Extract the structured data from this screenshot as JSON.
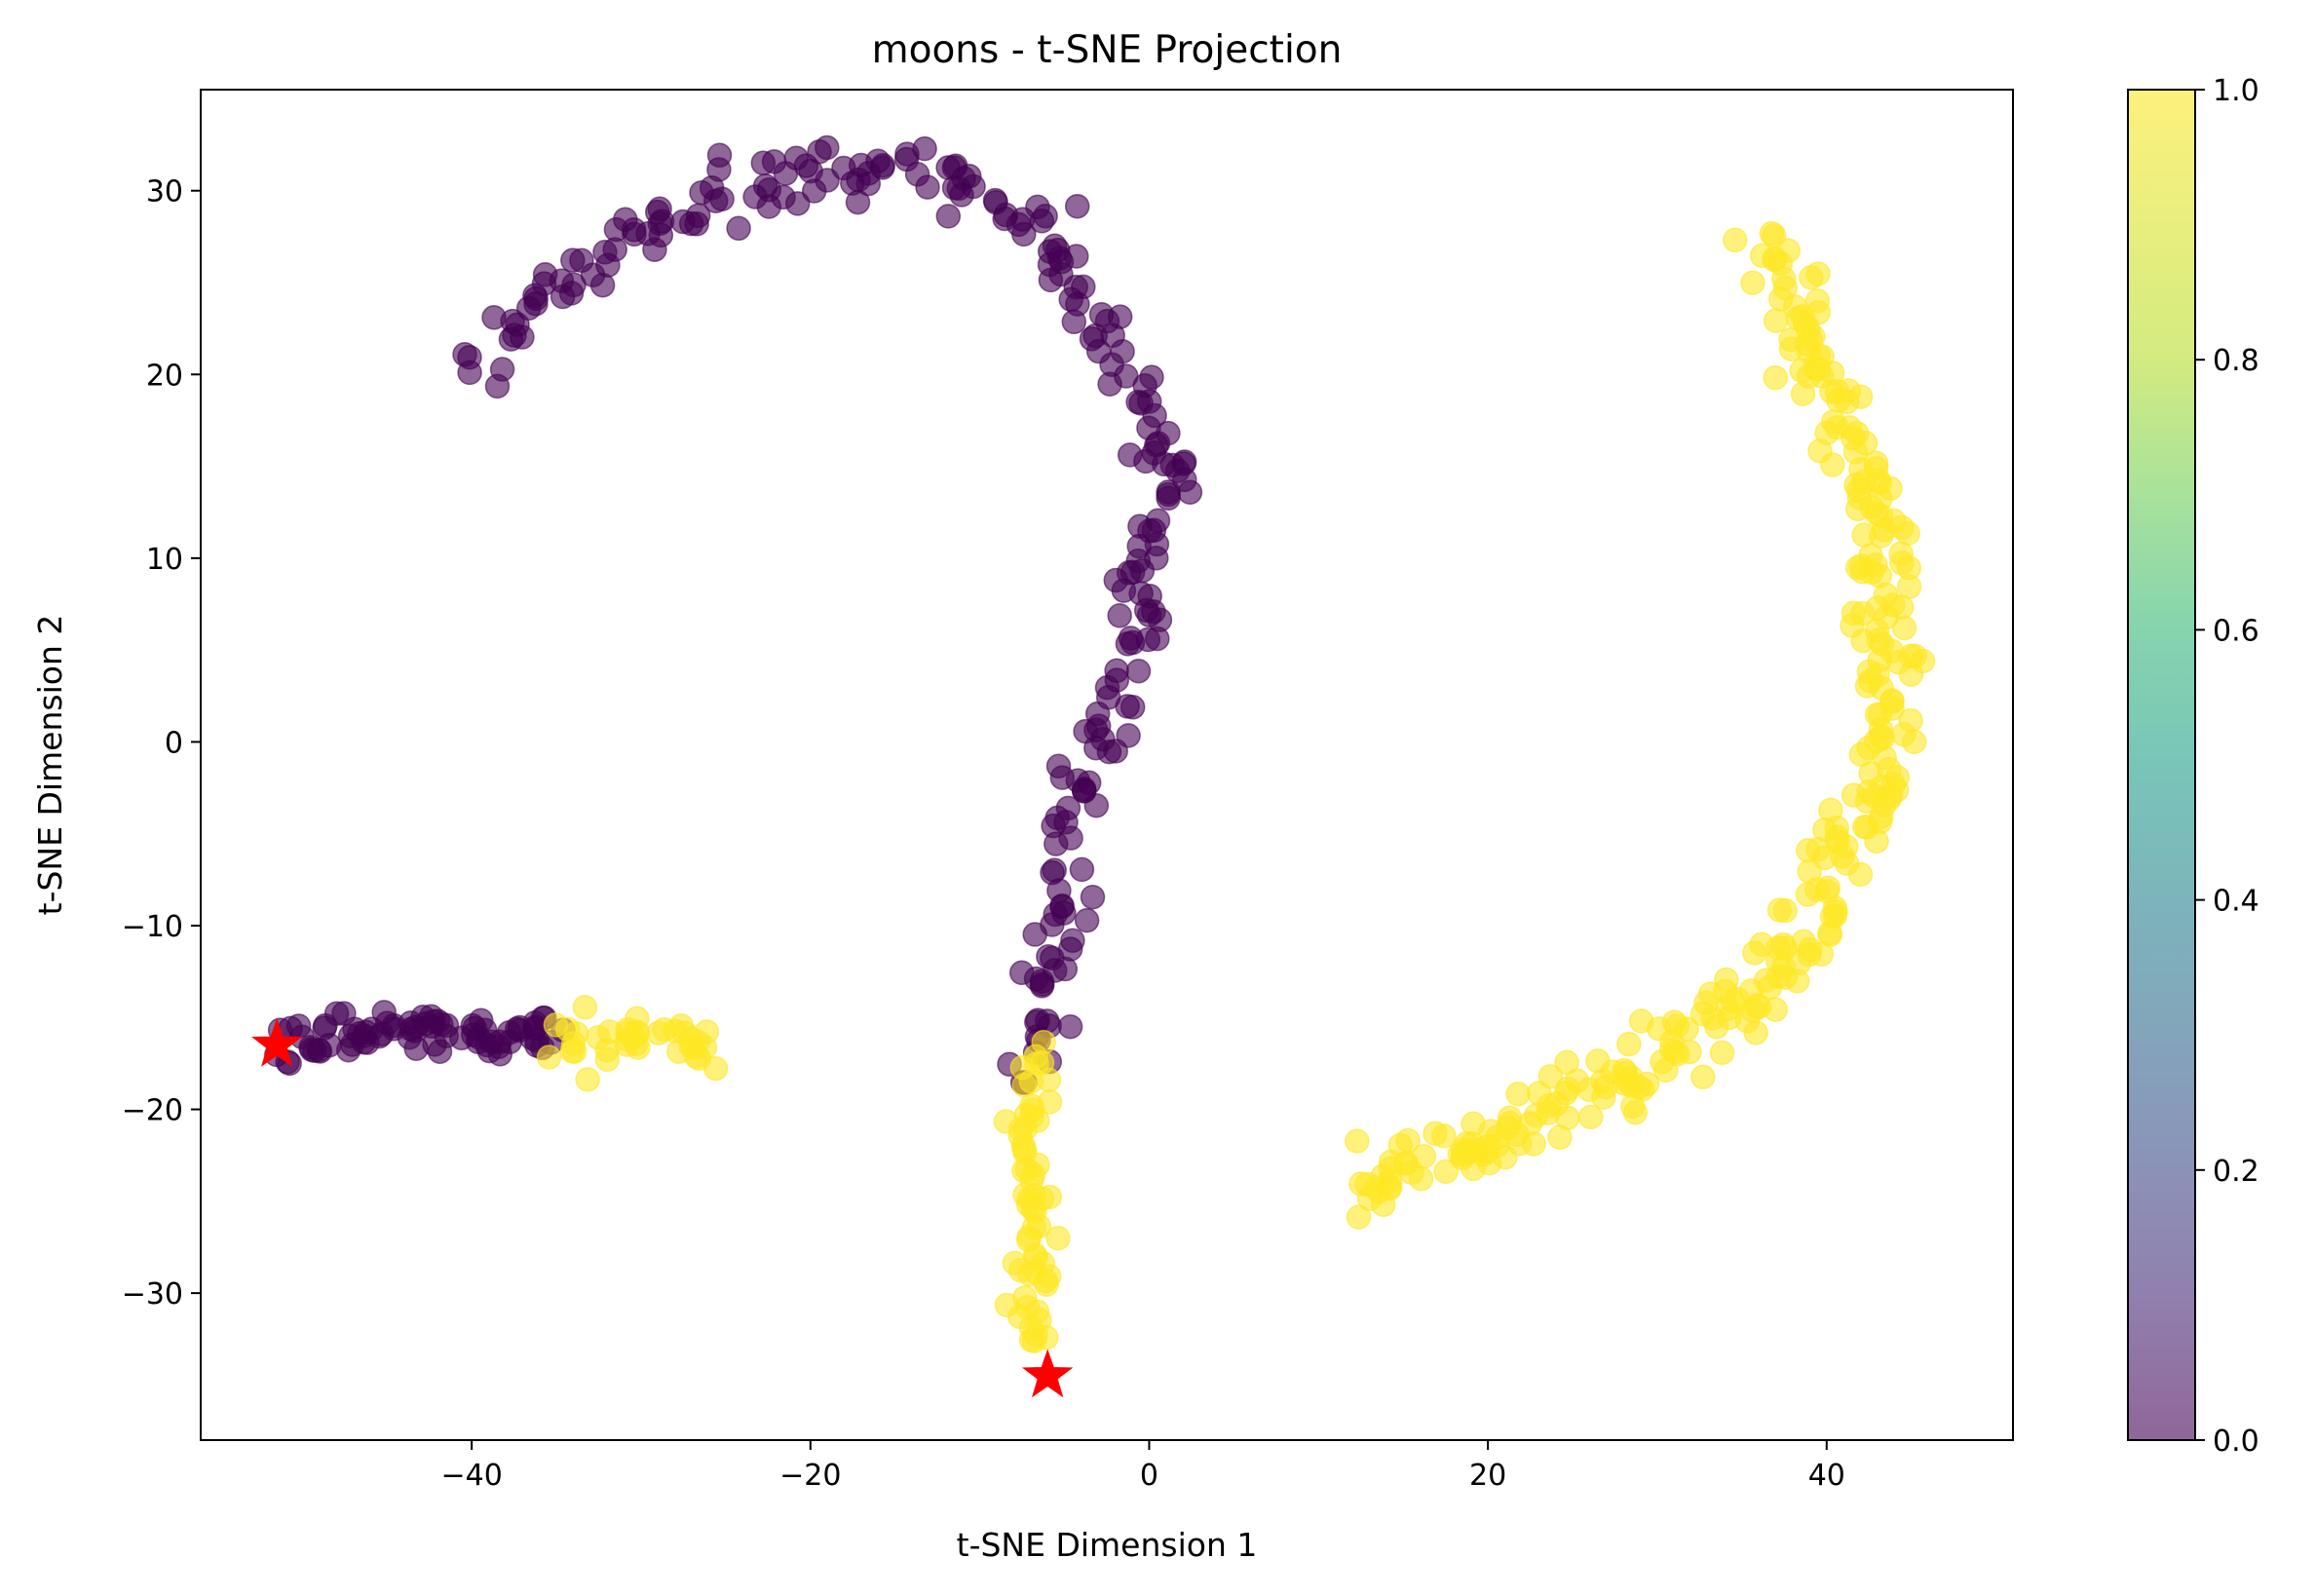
{
  "chart_data": {
    "type": "scatter",
    "title": "moons - t-SNE Projection",
    "xlabel": "t-SNE Dimension 1",
    "ylabel": "t-SNE Dimension 2",
    "xlim": [
      -56,
      51
    ],
    "ylim": [
      -38,
      35.5
    ],
    "xticks": [
      -40,
      -20,
      0,
      20,
      40
    ],
    "yticks": [
      -30,
      -20,
      -10,
      0,
      10,
      20,
      30
    ],
    "xtick_labels": [
      "−40",
      "−20",
      "0",
      "20",
      "40"
    ],
    "ytick_labels": [
      "−30",
      "−20",
      "−10",
      "0",
      "10",
      "20",
      "30"
    ],
    "grid": false,
    "colormap": "viridis",
    "class_colors": {
      "0": "#440154",
      "1": "#fde725"
    },
    "marker_color": "#ff0000",
    "point_alpha": 0.6,
    "colorbar": {
      "range": [
        0.0,
        1.0
      ],
      "ticks": [
        0.0,
        0.2,
        0.4,
        0.6,
        0.8,
        1.0
      ],
      "tick_labels": [
        "0.0",
        "0.2",
        "0.4",
        "0.6",
        "0.8",
        "1.0"
      ]
    },
    "curves": [
      {
        "class": 0,
        "n": 240,
        "spread": 0.8,
        "path": [
          [
            -40,
            20.5
          ],
          [
            -38,
            22
          ],
          [
            -35,
            24
          ],
          [
            -33,
            25.5
          ],
          [
            -31,
            27
          ],
          [
            -28,
            28.5
          ],
          [
            -26,
            29.8
          ],
          [
            -23,
            30.3
          ],
          [
            -20,
            31
          ],
          [
            -17,
            31.2
          ],
          [
            -14,
            30.8
          ],
          [
            -11,
            30
          ],
          [
            -9,
            29.5
          ],
          [
            -7,
            28.5
          ],
          [
            -5.5,
            27.5
          ],
          [
            -5,
            26
          ],
          [
            -4,
            24.5
          ],
          [
            -3,
            23
          ],
          [
            -2,
            21.5
          ],
          [
            -1.5,
            20
          ],
          [
            -1,
            18
          ],
          [
            0,
            16
          ],
          [
            1.5,
            15
          ],
          [
            1,
            13
          ],
          [
            0,
            11
          ],
          [
            -0.5,
            9
          ],
          [
            -1,
            7
          ],
          [
            0,
            6
          ],
          [
            -1,
            4
          ],
          [
            -2,
            2.5
          ],
          [
            -3,
            1
          ],
          [
            -3.5,
            -1
          ],
          [
            -4,
            -3
          ],
          [
            -4.5,
            -5
          ],
          [
            -5,
            -7
          ],
          [
            -5,
            -9
          ],
          [
            -5.5,
            -11
          ],
          [
            -6,
            -13
          ],
          [
            -6.5,
            -15
          ],
          [
            -7,
            -17
          ],
          [
            -8,
            -18.5
          ]
        ]
      },
      {
        "class": 1,
        "n": 60,
        "spread": 0.6,
        "path": [
          [
            -6,
            -17
          ],
          [
            -7,
            -19.5
          ],
          [
            -7,
            -22
          ],
          [
            -6.5,
            -24.5
          ],
          [
            -7,
            -27
          ],
          [
            -6.5,
            -29
          ],
          [
            -7.5,
            -31
          ],
          [
            -6.5,
            -32.5
          ]
        ]
      },
      {
        "class": 0,
        "n": 80,
        "spread": 0.6,
        "path": [
          [
            -51,
            -16.5
          ],
          [
            -48,
            -16
          ],
          [
            -45,
            -15.8
          ],
          [
            -42,
            -16
          ],
          [
            -39,
            -16.2
          ],
          [
            -36,
            -15.8
          ],
          [
            -35,
            -16
          ]
        ]
      },
      {
        "class": 1,
        "n": 38,
        "spread": 0.7,
        "path": [
          [
            -35,
            -16.2
          ],
          [
            -32,
            -15.7
          ],
          [
            -29,
            -16
          ],
          [
            -27,
            -16.5
          ],
          [
            -25.5,
            -17.2
          ]
        ]
      },
      {
        "class": 1,
        "n": 300,
        "spread": 0.9,
        "path": [
          [
            37,
            27.5
          ],
          [
            37.5,
            25
          ],
          [
            39,
            22
          ],
          [
            40,
            19.5
          ],
          [
            41,
            17
          ],
          [
            42,
            14.5
          ],
          [
            43,
            12.5
          ],
          [
            43.5,
            10
          ],
          [
            43,
            8
          ],
          [
            43.5,
            5.5
          ],
          [
            44,
            3
          ],
          [
            44,
            0.5
          ],
          [
            43.5,
            -2
          ],
          [
            42,
            -4
          ],
          [
            41,
            -6
          ],
          [
            40,
            -8
          ],
          [
            39,
            -10
          ],
          [
            37.5,
            -12
          ],
          [
            36,
            -13.5
          ],
          [
            33,
            -15.5
          ],
          [
            31,
            -17
          ],
          [
            28,
            -18.5
          ],
          [
            25,
            -19.5
          ],
          [
            22,
            -21
          ],
          [
            19,
            -22
          ],
          [
            16,
            -23
          ],
          [
            13.5,
            -24
          ],
          [
            12,
            -25
          ]
        ]
      }
    ],
    "highlights": [
      {
        "x": -51.5,
        "y": -16.5,
        "marker": "star"
      },
      {
        "x": -6.0,
        "y": -34.5,
        "marker": "star"
      }
    ]
  }
}
